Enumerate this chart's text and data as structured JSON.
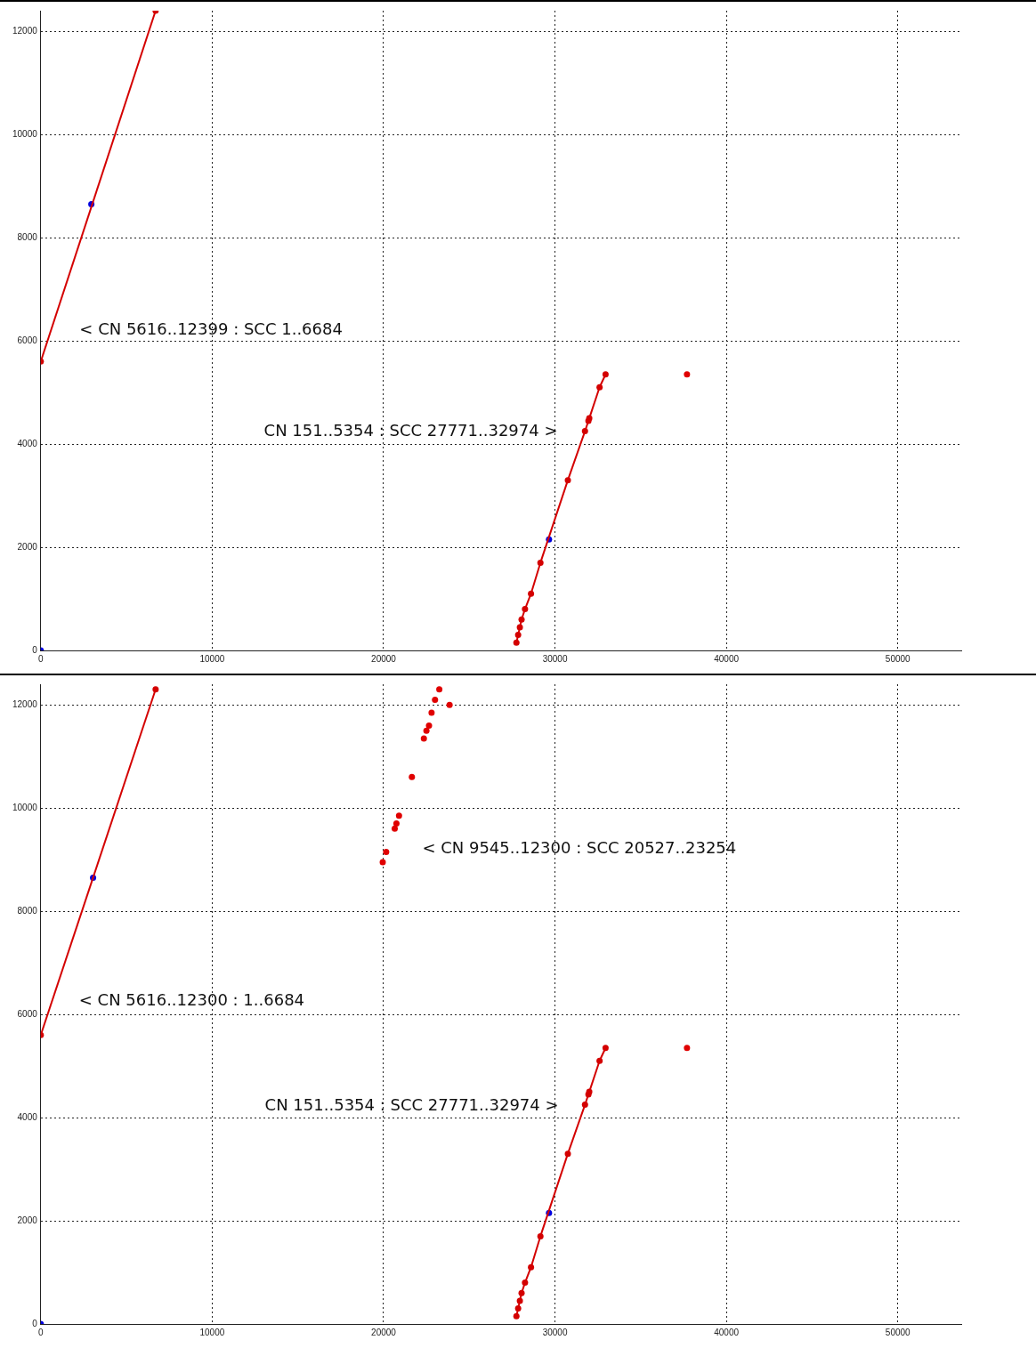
{
  "chart_data": [
    {
      "type": "scatter",
      "xlim": [
        0,
        53700
      ],
      "ylim": [
        0,
        12400
      ],
      "xticks": [
        0,
        10000,
        20000,
        30000,
        40000,
        50000
      ],
      "yticks": [
        0,
        2000,
        4000,
        6000,
        8000,
        10000,
        12000
      ],
      "grid": true,
      "legend": false,
      "marker": "circle",
      "series": [
        {
          "type": "line",
          "color": "#d40000",
          "x": [
            0,
            6700
          ],
          "values": [
            5600,
            12400
          ]
        },
        {
          "type": "line",
          "color": "#d40000",
          "x": [
            27750,
            27850,
            27950,
            28050,
            28250,
            28600,
            29150,
            30750,
            31750,
            31950,
            32000,
            32600,
            32950
          ],
          "values": [
            150,
            300,
            450,
            600,
            800,
            1100,
            1700,
            3300,
            4250,
            4450,
            4500,
            5100,
            5350
          ]
        },
        {
          "type": "scatter",
          "color": "#e00000",
          "x": [
            37700
          ],
          "values": [
            5350
          ]
        },
        {
          "type": "scatter",
          "color": "#0000e0",
          "x": [
            0,
            2950,
            29650
          ],
          "values": [
            0,
            8650,
            2150
          ]
        }
      ],
      "annotations": [
        "< CN 5616..12399 : SCC 1..6684",
        "CN 151..5354 : SCC 27771..32974 >"
      ]
    },
    {
      "type": "scatter",
      "xlim": [
        0,
        53700
      ],
      "ylim": [
        0,
        12400
      ],
      "xticks": [
        0,
        10000,
        20000,
        30000,
        40000,
        50000
      ],
      "yticks": [
        0,
        2000,
        4000,
        6000,
        8000,
        10000,
        12000
      ],
      "grid": true,
      "legend": false,
      "marker": "circle",
      "series": [
        {
          "type": "line",
          "color": "#d40000",
          "x": [
            0,
            6700
          ],
          "values": [
            5600,
            12300
          ]
        },
        {
          "type": "line",
          "color": "#d40000",
          "x": [
            27750,
            27850,
            27950,
            28050,
            28250,
            28600,
            29150,
            30750,
            31750,
            31950,
            32000,
            32600,
            32950
          ],
          "values": [
            150,
            300,
            450,
            600,
            800,
            1100,
            1700,
            3300,
            4250,
            4450,
            4500,
            5100,
            5350
          ]
        },
        {
          "type": "scatter",
          "color": "#e00000",
          "x": [
            19950,
            20150,
            20650,
            20750,
            20900,
            21650,
            22350,
            22500,
            22650,
            22800,
            23000,
            23250,
            23850,
            37700
          ],
          "values": [
            8950,
            9150,
            9600,
            9700,
            9850,
            10600,
            11350,
            11500,
            11600,
            11850,
            12100,
            12300,
            12000,
            5350
          ]
        },
        {
          "type": "scatter",
          "color": "#0000e0",
          "x": [
            0,
            3050,
            29650
          ],
          "values": [
            0,
            8650,
            2150
          ]
        }
      ],
      "annotations": [
        "< CN 9545..12300 : SCC 20527..23254",
        "< CN 5616..12300 : 1..6684",
        "CN 151..5354 : SCC 27771..32974 >"
      ]
    }
  ]
}
